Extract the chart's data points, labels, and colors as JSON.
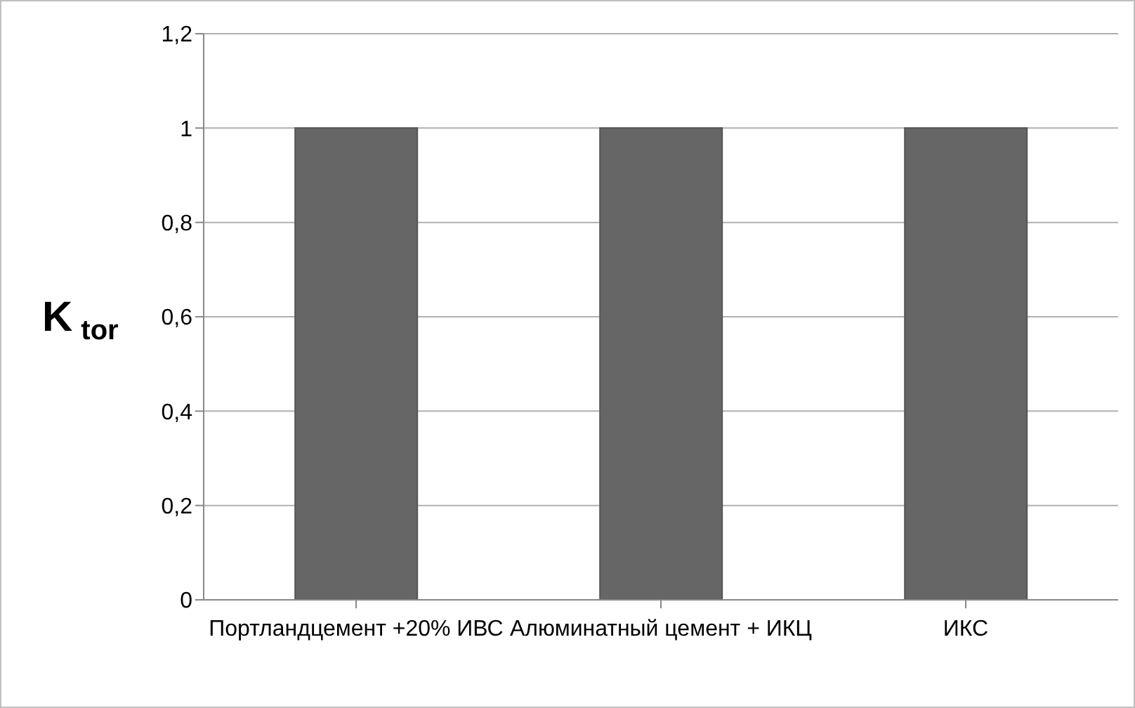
{
  "chart_data": {
    "type": "bar",
    "ylabel": "K$_{tor}$",
    "categories": [
      "Портландцемент +20% ИВС",
      "Алюминатный цемент + ИКЦ",
      "ИКС"
    ],
    "values": [
      1,
      1,
      1
    ],
    "color": "#666666",
    "ylim": [
      0,
      1.2
    ],
    "yticks": [
      {
        "value": 0,
        "label": "0"
      },
      {
        "value": 0.2,
        "label": "0,2"
      },
      {
        "value": 0.4,
        "label": "0,4"
      },
      {
        "value": 0.6,
        "label": "0,6"
      },
      {
        "value": 0.8,
        "label": "0,8"
      },
      {
        "value": 1,
        "label": "1"
      },
      {
        "value": 1.2,
        "label": "1,2"
      }
    ],
    "grid": "y",
    "legend": false
  }
}
